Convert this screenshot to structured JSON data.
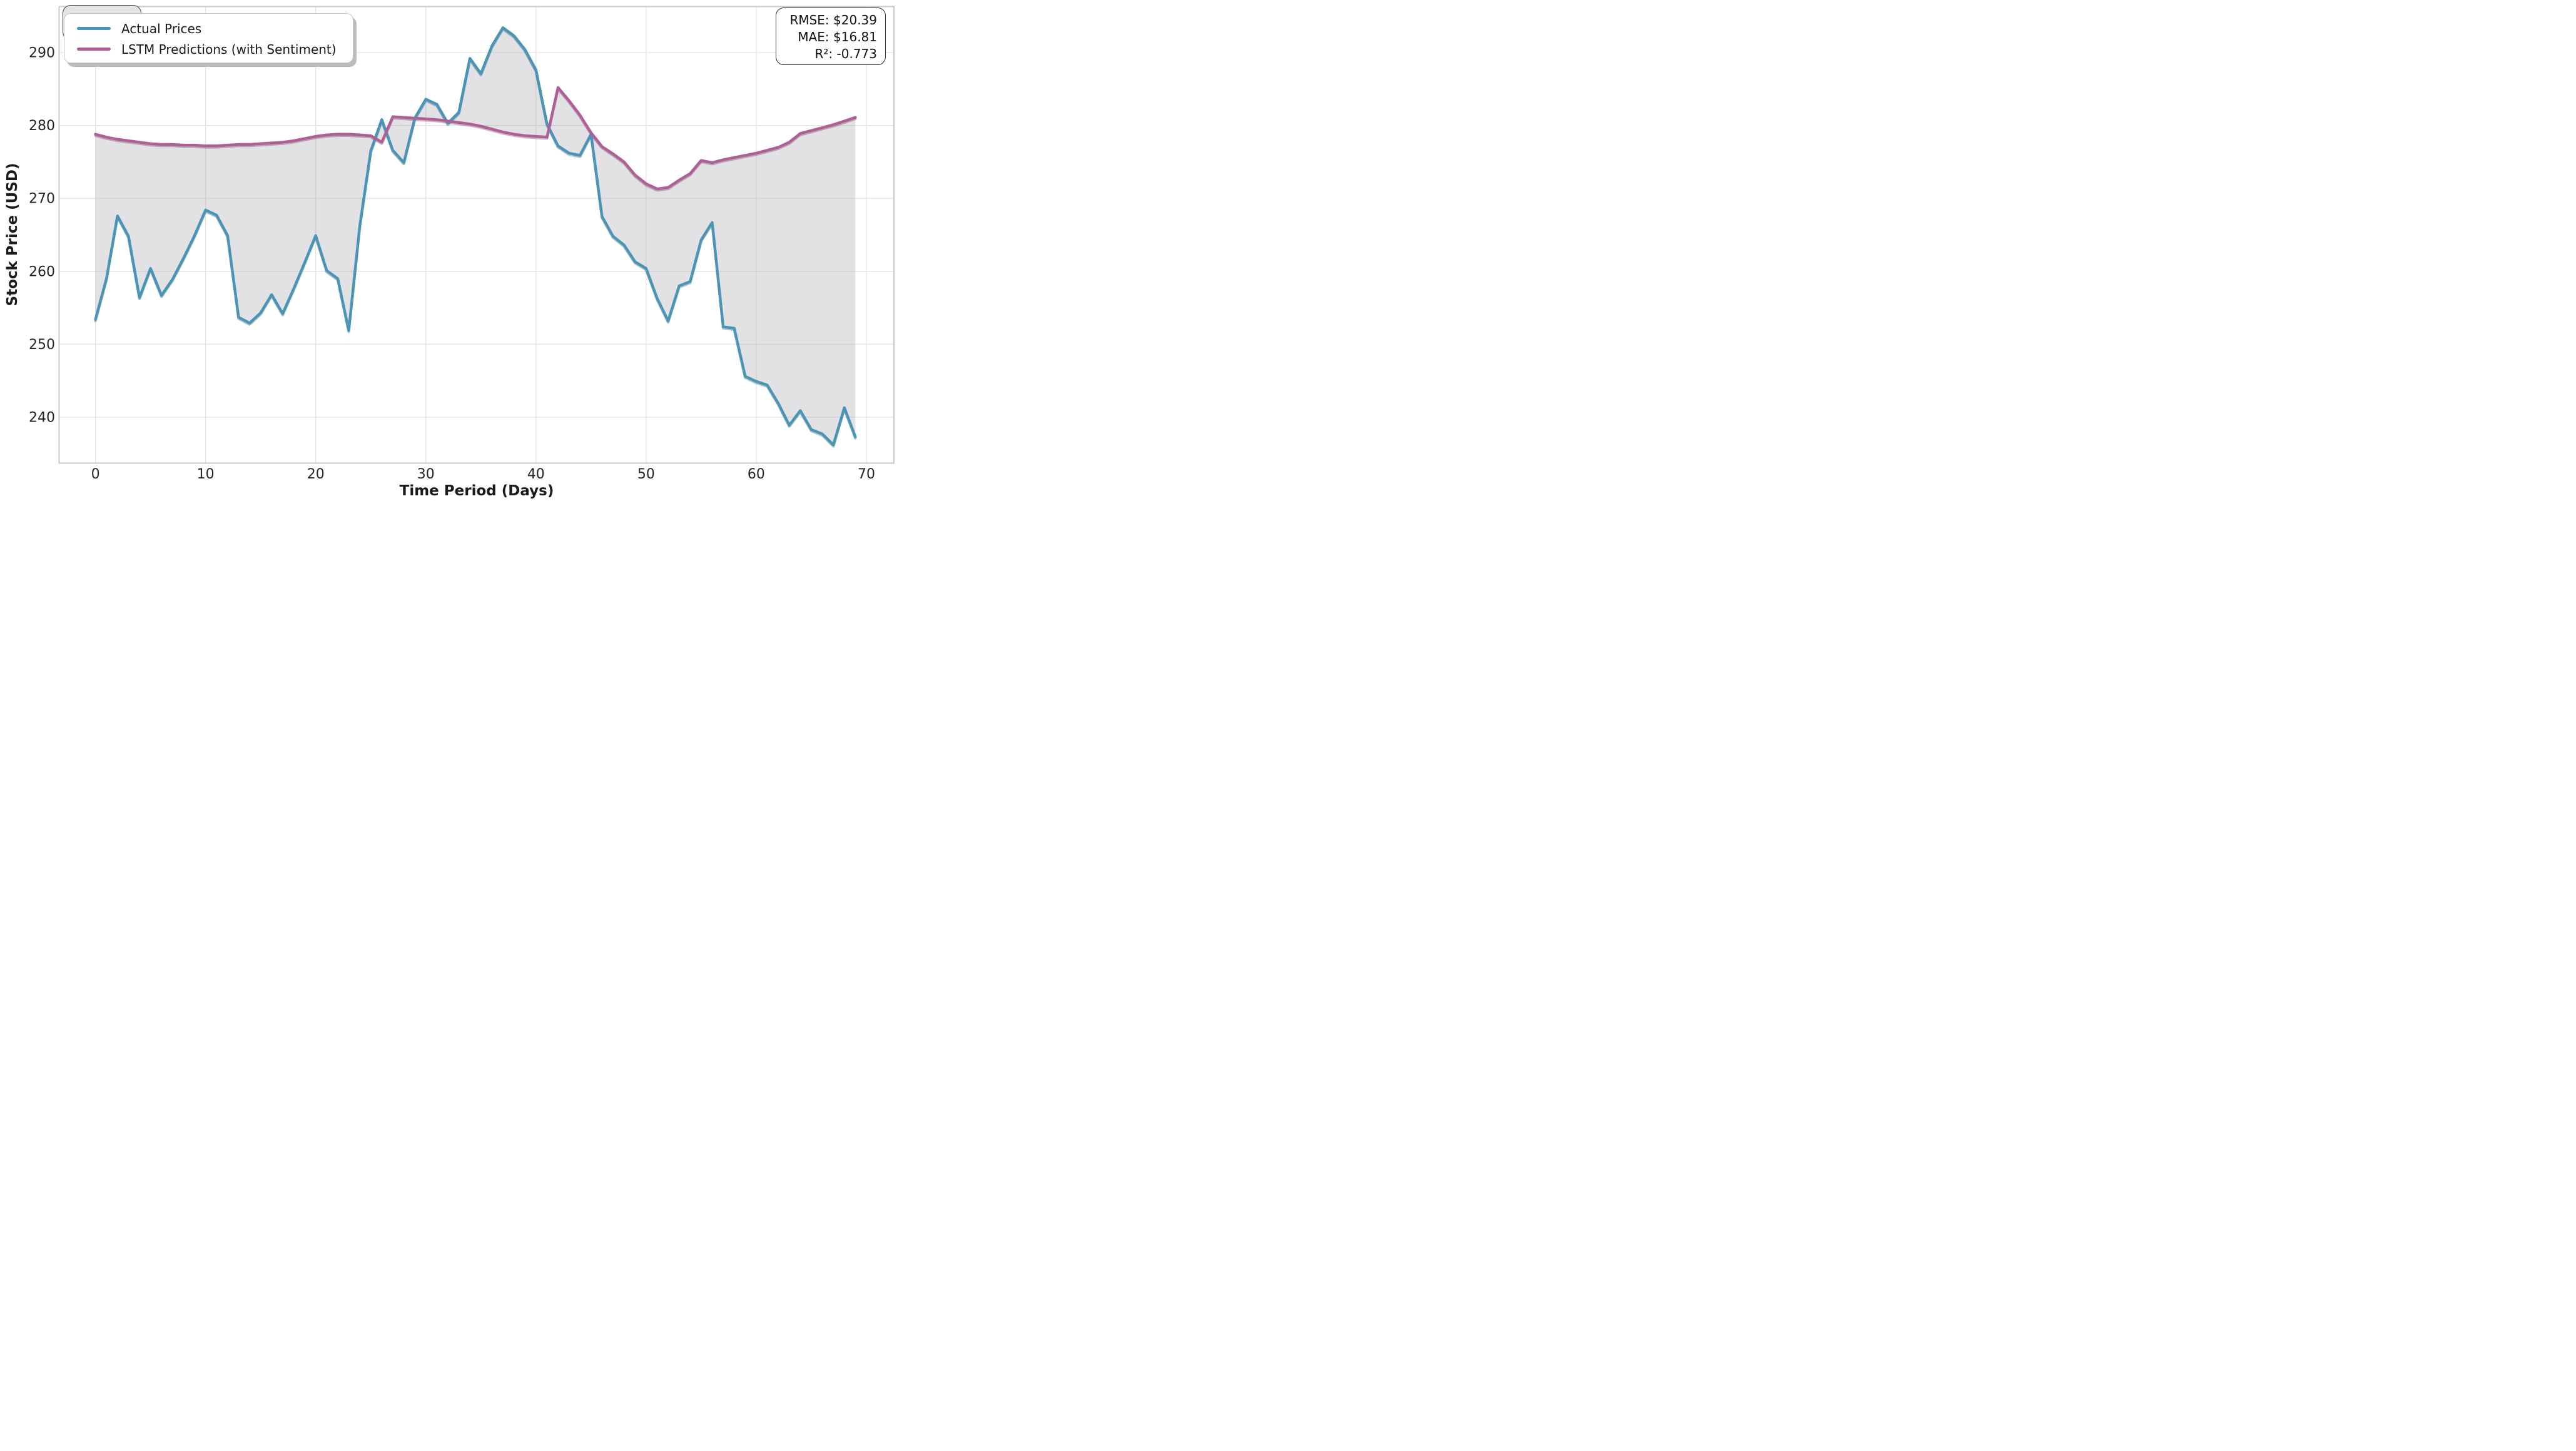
{
  "chart_data": {
    "type": "line",
    "title": "",
    "xlabel": "Time Period (Days)",
    "ylabel": "Stock Price (USD)",
    "xticks": [
      0,
      10,
      20,
      30,
      40,
      50,
      60,
      70
    ],
    "yticks": [
      240,
      250,
      260,
      270,
      280,
      290
    ],
    "xlim": [
      -3.3,
      72.5
    ],
    "ylim": [
      233.7,
      296.3
    ],
    "grid": true,
    "legend_position": "upper left",
    "x": [
      0,
      1,
      2,
      3,
      4,
      5,
      6,
      7,
      8,
      9,
      10,
      11,
      12,
      13,
      14,
      15,
      16,
      17,
      18,
      19,
      20,
      21,
      22,
      23,
      24,
      25,
      26,
      27,
      28,
      29,
      30,
      31,
      32,
      33,
      34,
      35,
      36,
      37,
      38,
      39,
      40,
      41,
      42,
      43,
      44,
      45,
      46,
      47,
      48,
      49,
      50,
      51,
      52,
      53,
      54,
      55,
      56,
      57,
      58,
      59,
      60,
      61,
      62,
      63,
      64,
      65,
      66,
      67,
      68,
      69
    ],
    "series": [
      {
        "name": "Actual Prices",
        "color": "#4A94B8",
        "values": [
          253.4,
          259.0,
          267.6,
          264.8,
          256.4,
          260.4,
          256.7,
          258.9,
          261.8,
          264.9,
          268.4,
          267.7,
          264.9,
          253.7,
          252.9,
          254.3,
          256.8,
          254.2,
          257.6,
          261.2,
          264.9,
          260.1,
          259.0,
          251.9,
          266.2,
          276.5,
          280.8,
          276.6,
          274.9,
          281.0,
          283.6,
          282.9,
          280.3,
          281.8,
          289.2,
          287.1,
          290.9,
          293.4,
          292.3,
          290.4,
          287.6,
          280.2,
          277.2,
          276.2,
          275.9,
          278.8,
          267.5,
          264.8,
          263.6,
          261.3,
          260.4,
          256.3,
          253.2,
          258.0,
          258.6,
          264.3,
          266.7,
          252.4,
          252.2,
          245.6,
          244.9,
          244.4,
          241.9,
          238.9,
          240.9,
          238.3,
          237.7,
          236.2,
          241.3,
          237.3
        ]
      },
      {
        "name": "LSTM Predictions (with Sentiment)",
        "color": "#B05E95",
        "values": [
          278.8,
          278.4,
          278.1,
          277.9,
          277.7,
          277.5,
          277.4,
          277.4,
          277.3,
          277.3,
          277.2,
          277.2,
          277.3,
          277.4,
          277.4,
          277.5,
          277.6,
          277.7,
          277.9,
          278.2,
          278.5,
          278.7,
          278.8,
          278.8,
          278.7,
          278.6,
          277.7,
          281.2,
          281.1,
          281.0,
          280.9,
          280.8,
          280.6,
          280.4,
          280.2,
          279.9,
          279.5,
          279.1,
          278.8,
          278.6,
          278.5,
          278.4,
          285.2,
          283.4,
          281.4,
          279.0,
          277.1,
          276.1,
          275.0,
          273.2,
          272.0,
          271.3,
          271.5,
          272.5,
          273.4,
          275.2,
          274.9,
          275.3,
          275.6,
          275.9,
          276.2,
          276.6,
          277.0,
          277.7,
          278.9,
          279.3,
          279.7,
          280.1,
          280.6,
          281.1
        ]
      }
    ],
    "fill_between": {
      "between": [
        "Actual Prices",
        "LSTM Predictions (with Sentiment)"
      ],
      "color": "#A5A5AC",
      "opacity": 0.32
    },
    "annotations": [
      "RMSE: $20.39",
      "MAE: $16.81",
      "R²: -0.773"
    ]
  },
  "legend": {
    "items": [
      {
        "label": "Actual Prices",
        "color": "#4A94B8"
      },
      {
        "label": "LSTM Predictions (with Sentiment)",
        "color": "#B05E95"
      }
    ]
  },
  "stats_box": {
    "lines": [
      "RMSE: $20.39",
      "MAE: $16.81",
      "R²: -0.773"
    ]
  },
  "colors": {
    "grid": "#E3E3E3",
    "spine": "#C9C9C9",
    "tick_text": "#262626"
  }
}
